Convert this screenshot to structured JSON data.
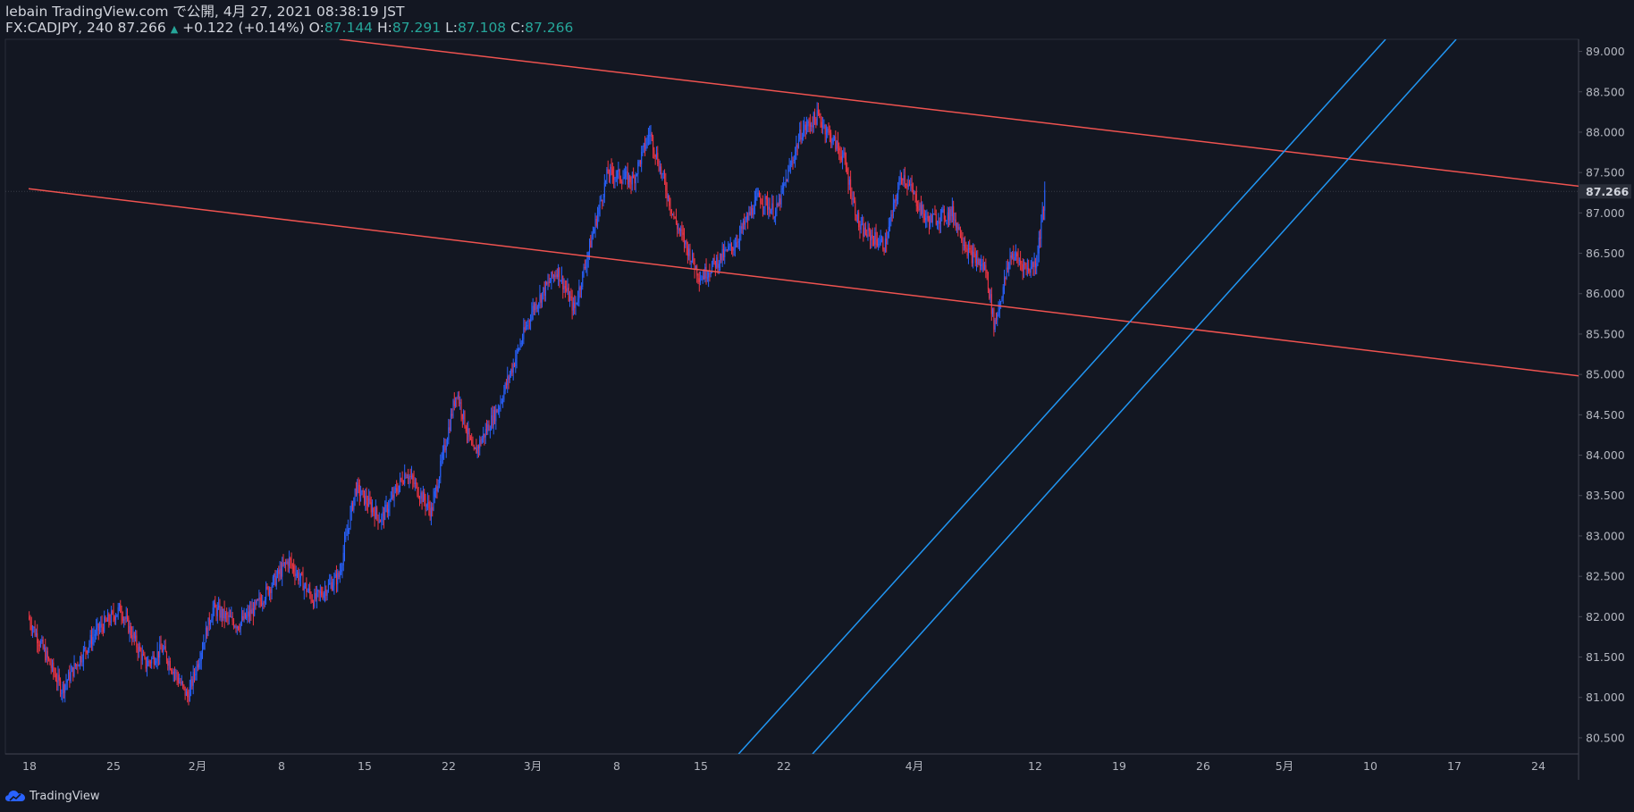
{
  "header": {
    "published_line": "lebain TradingView.com で公開, 4月 27, 2021 08:38:19 JST",
    "symbol_line": "FX:CADJPY, 240 87.266",
    "change": "+0.122 (+0.14%)",
    "open_label": "O:",
    "open": "87.144",
    "high_label": "H:",
    "high": "87.291",
    "low_label": "L:",
    "low": "87.108",
    "close_label": "C:",
    "close": "87.266"
  },
  "footer": {
    "brand": "TradingView"
  },
  "colors": {
    "background": "#131722",
    "up": "#2962ff",
    "down": "#f23645",
    "trend_red": "#ef5350",
    "trend_blue": "#2196f3",
    "grid": "#2a2e39"
  },
  "chart_data": {
    "type": "candlestick",
    "symbol": "FX:CADJPY",
    "interval": "240",
    "last_price": 87.266,
    "y_axis": {
      "range": [
        80.3,
        89.15
      ],
      "tick_labels": [
        "89.000",
        "88.500",
        "88.000",
        "87.500",
        "87.000",
        "86.500",
        "86.000",
        "85.500",
        "85.000",
        "84.500",
        "84.000",
        "83.500",
        "83.000",
        "82.500",
        "82.000",
        "81.500",
        "81.000",
        "80.500"
      ],
      "last_label": "87.266"
    },
    "x_axis": {
      "tick_labels": [
        "18",
        "25",
        "2月",
        "8",
        "15",
        "22",
        "3月",
        "8",
        "15",
        "22",
        "4月",
        "12",
        "19",
        "26",
        "5月",
        "10",
        "17",
        "24"
      ]
    },
    "price_path": [
      [
        0,
        82.0
      ],
      [
        4,
        81.1
      ],
      [
        8,
        81.8
      ],
      [
        11,
        82.1
      ],
      [
        14,
        81.4
      ],
      [
        16,
        81.6
      ],
      [
        19,
        81.0
      ],
      [
        22,
        82.1
      ],
      [
        25,
        81.9
      ],
      [
        27,
        82.1
      ],
      [
        31,
        82.7
      ],
      [
        34,
        82.2
      ],
      [
        37,
        82.5
      ],
      [
        39,
        83.6
      ],
      [
        42,
        83.2
      ],
      [
        45,
        83.8
      ],
      [
        48,
        83.3
      ],
      [
        51,
        84.8
      ],
      [
        53,
        84.0
      ],
      [
        56,
        84.6
      ],
      [
        60,
        85.8
      ],
      [
        63,
        86.3
      ],
      [
        65,
        85.8
      ],
      [
        69,
        87.5
      ],
      [
        72,
        87.4
      ],
      [
        74,
        88.0
      ],
      [
        77,
        86.9
      ],
      [
        80,
        86.2
      ],
      [
        84,
        86.6
      ],
      [
        87,
        87.2
      ],
      [
        89,
        87.0
      ],
      [
        92,
        88.0
      ],
      [
        94,
        88.2
      ],
      [
        97,
        87.7
      ],
      [
        99,
        86.8
      ],
      [
        102,
        86.6
      ],
      [
        104,
        87.5
      ],
      [
        107,
        86.9
      ],
      [
        110,
        87.0
      ],
      [
        112,
        86.5
      ],
      [
        114,
        86.3
      ],
      [
        115,
        85.6
      ],
      [
        117,
        86.5
      ],
      [
        119,
        86.3
      ],
      [
        120,
        86.4
      ],
      [
        121,
        87.2
      ]
    ],
    "trendlines": [
      {
        "color": "red",
        "points": [
          [
            37.0,
            89.15
          ],
          [
            187.0,
            87.3
          ]
        ]
      },
      {
        "color": "red",
        "points": [
          [
            0,
            87.3
          ],
          [
            187.0,
            84.95
          ]
        ]
      },
      {
        "color": "blue",
        "points": [
          [
            84.5,
            80.3
          ],
          [
            161.5,
            89.15
          ]
        ]
      },
      {
        "color": "blue",
        "points": [
          [
            93.3,
            80.3
          ],
          [
            169.9,
            89.15
          ]
        ]
      }
    ]
  }
}
